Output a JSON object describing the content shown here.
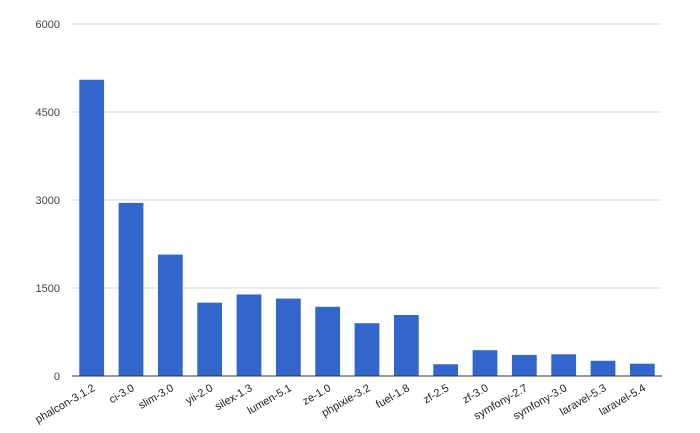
{
  "chart_data": {
    "type": "bar",
    "title": "",
    "xlabel": "",
    "ylabel": "",
    "categories": [
      "phalcon-3.1.2",
      "ci-3.0",
      "slim-3.0",
      "yii-2.0",
      "silex-1.3",
      "lumen-5.1",
      "ze-1.0",
      "phpixie-3.2",
      "fuel-1.8",
      "zf-2.5",
      "zf-3.0",
      "symfony-2.7",
      "symfony-3.0",
      "laravel-5.3",
      "laravel-5.4"
    ],
    "values": [
      5050,
      2950,
      2070,
      1250,
      1390,
      1320,
      1180,
      900,
      1040,
      200,
      440,
      360,
      370,
      260,
      210
    ],
    "ylim": [
      0,
      6000
    ],
    "yticks": [
      0,
      1500,
      3000,
      4500,
      6000
    ],
    "grid": true,
    "legend": "none",
    "bar_color": "#3366cc"
  }
}
